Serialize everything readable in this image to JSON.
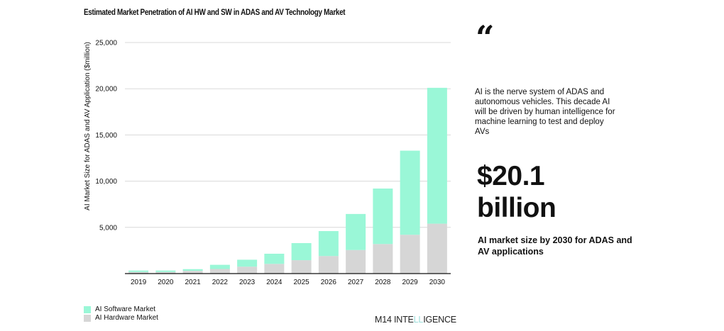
{
  "chart_data": {
    "type": "bar",
    "stacked": true,
    "title": "Estimated Market Penetration of AI HW and SW in ADAS and AV Technology Market",
    "xlabel": "",
    "ylabel": "AI Market Size for ADAS and AV Application ($million)",
    "ylim": [
      0,
      25000
    ],
    "yticks": [
      5000,
      10000,
      15000,
      20000,
      25000
    ],
    "ytick_labels": [
      "5,000",
      "10,000",
      "15,000",
      "20,000",
      "25,000"
    ],
    "grid": true,
    "legend_position": "bottom-left",
    "categories": [
      "2019",
      "2020",
      "2021",
      "2022",
      "2023",
      "2024",
      "2025",
      "2026",
      "2027",
      "2028",
      "2029",
      "2030"
    ],
    "series": [
      {
        "name": "AI Hardware Market",
        "color": "#d6d6d6",
        "values": [
          170,
          170,
          300,
          500,
          750,
          1050,
          1450,
          1900,
          2550,
          3200,
          4200,
          5400
        ]
      },
      {
        "name": "AI Software Market",
        "color": "#9af7d7",
        "values": [
          160,
          160,
          180,
          450,
          750,
          1100,
          1850,
          2700,
          3900,
          6000,
          9100,
          14700
        ]
      }
    ],
    "totals": [
      330,
      330,
      480,
      950,
      1500,
      2150,
      3300,
      4600,
      6450,
      9200,
      13300,
      20100
    ]
  },
  "legend": [
    {
      "label": "AI Software Market",
      "color": "#9af7d7"
    },
    {
      "label": "AI Hardware Market",
      "color": "#d6d6d6"
    }
  ],
  "logo": {
    "prefix": "M14 INTE",
    "highlight": "LL",
    "suffix": "IGENCE"
  },
  "sidebar": {
    "quote_mark": "“",
    "quote": "AI is the nerve system of ADAS and autonomous vehicles. This decade AI will be driven by human intelligence for machine learning to test and deploy AVs",
    "value_line1": "$20.1",
    "value_line2": "billion",
    "caption": "AI market size by 2030 for ADAS and AV applications"
  }
}
